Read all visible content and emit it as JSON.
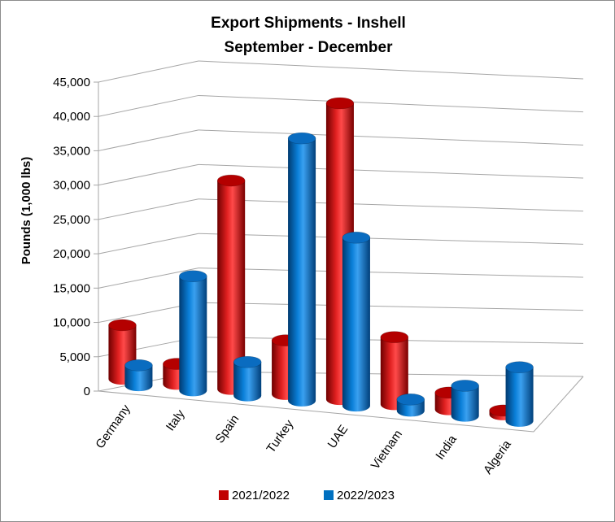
{
  "chart_data": {
    "type": "bar",
    "style": "3d-cylinder",
    "title": "Export Shipments - Inshell",
    "subtitle": "September - December",
    "ylabel": "Pounds (1,000 lbs)",
    "xlabel": "",
    "ylim": [
      0,
      45000
    ],
    "yticks": [
      "0",
      "5,000",
      "10,000",
      "15,000",
      "20,000",
      "25,000",
      "30,000",
      "35,000",
      "40,000",
      "45,000"
    ],
    "categories": [
      "Germany",
      "Italy",
      "Spain",
      "Turkey",
      "UAE",
      "Vietnam",
      "India",
      "Algeria"
    ],
    "series": [
      {
        "name": "2021/2022",
        "color": "#c00000",
        "values": [
          8000,
          3000,
          31000,
          8000,
          44000,
          10000,
          2500,
          600
        ]
      },
      {
        "name": "2022/2023",
        "color": "#0070c0",
        "values": [
          3000,
          17000,
          5000,
          39000,
          25000,
          1700,
          4500,
          8000
        ]
      }
    ],
    "grid": true,
    "legend": "bottom"
  }
}
